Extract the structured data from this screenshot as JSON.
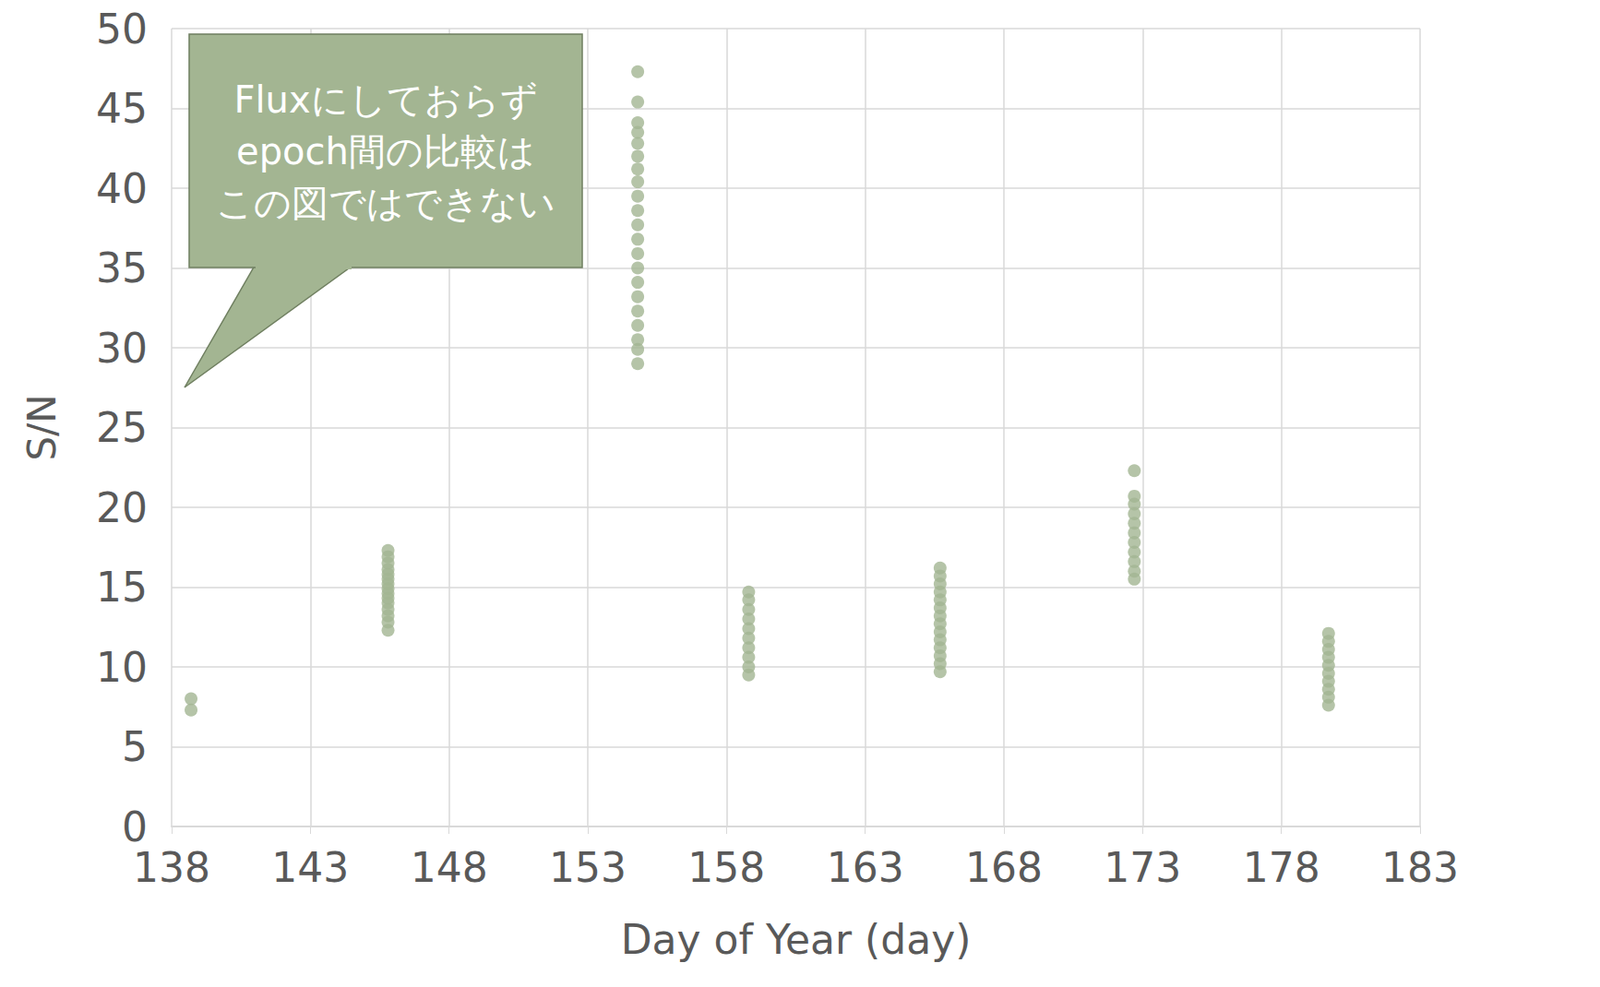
{
  "chart_data": {
    "type": "scatter",
    "x_label": "Day of Year (day)",
    "y_label": "S/N",
    "annotation": [
      "Fluxにしておらず",
      "epoch間の比較は",
      "この図ではできない"
    ],
    "color": "#a3b592",
    "marker": "circle",
    "grid": true,
    "xlim": [
      138,
      183
    ],
    "xticks": [
      138,
      143,
      148,
      153,
      158,
      163,
      168,
      173,
      178,
      183
    ],
    "ylim": [
      0,
      50
    ],
    "yticks": [
      0,
      5,
      10,
      15,
      20,
      25,
      30,
      35,
      40,
      45,
      50
    ],
    "x": [
      138.7,
      138.7,
      145.8,
      145.8,
      145.8,
      145.8,
      145.8,
      145.8,
      145.8,
      145.8,
      145.8,
      145.8,
      145.8,
      145.8,
      145.8,
      145.8,
      145.8,
      154.8,
      154.8,
      154.8,
      154.8,
      154.8,
      154.8,
      154.8,
      154.8,
      154.8,
      154.8,
      154.8,
      154.8,
      154.8,
      154.8,
      154.8,
      154.8,
      154.8,
      154.8,
      154.8,
      154.8,
      154.8,
      158.8,
      158.8,
      158.8,
      158.8,
      158.8,
      158.8,
      158.8,
      158.8,
      158.8,
      158.8,
      165.7,
      165.7,
      165.7,
      165.7,
      165.7,
      165.7,
      165.7,
      165.7,
      165.7,
      165.7,
      165.7,
      165.7,
      165.7,
      165.7,
      172.7,
      172.7,
      172.7,
      172.7,
      172.7,
      172.7,
      172.7,
      172.7,
      172.7,
      172.7,
      172.7,
      179.7,
      179.7,
      179.7,
      179.7,
      179.7,
      179.7,
      179.7,
      179.7,
      179.7,
      179.7
    ],
    "values": [
      8.0,
      7.3,
      17.3,
      16.9,
      16.5,
      16.1,
      15.8,
      15.5,
      15.2,
      14.9,
      14.6,
      14.3,
      14.0,
      13.6,
      13.2,
      12.8,
      12.3,
      47.3,
      45.4,
      44.1,
      43.5,
      42.8,
      42.0,
      41.2,
      40.4,
      39.5,
      38.6,
      37.7,
      36.8,
      35.9,
      35.0,
      34.1,
      33.2,
      32.3,
      31.4,
      30.5,
      29.9,
      29.0,
      14.7,
      14.2,
      13.6,
      13.0,
      12.4,
      11.8,
      11.2,
      10.6,
      10.0,
      9.5,
      16.2,
      15.7,
      15.2,
      14.7,
      14.2,
      13.7,
      13.2,
      12.7,
      12.2,
      11.7,
      11.2,
      10.7,
      10.2,
      9.7,
      22.3,
      20.7,
      20.2,
      19.6,
      19.0,
      18.4,
      17.8,
      17.2,
      16.6,
      16.0,
      15.5,
      12.1,
      11.6,
      11.1,
      10.6,
      10.1,
      9.6,
      9.1,
      8.6,
      8.1,
      7.6
    ]
  }
}
